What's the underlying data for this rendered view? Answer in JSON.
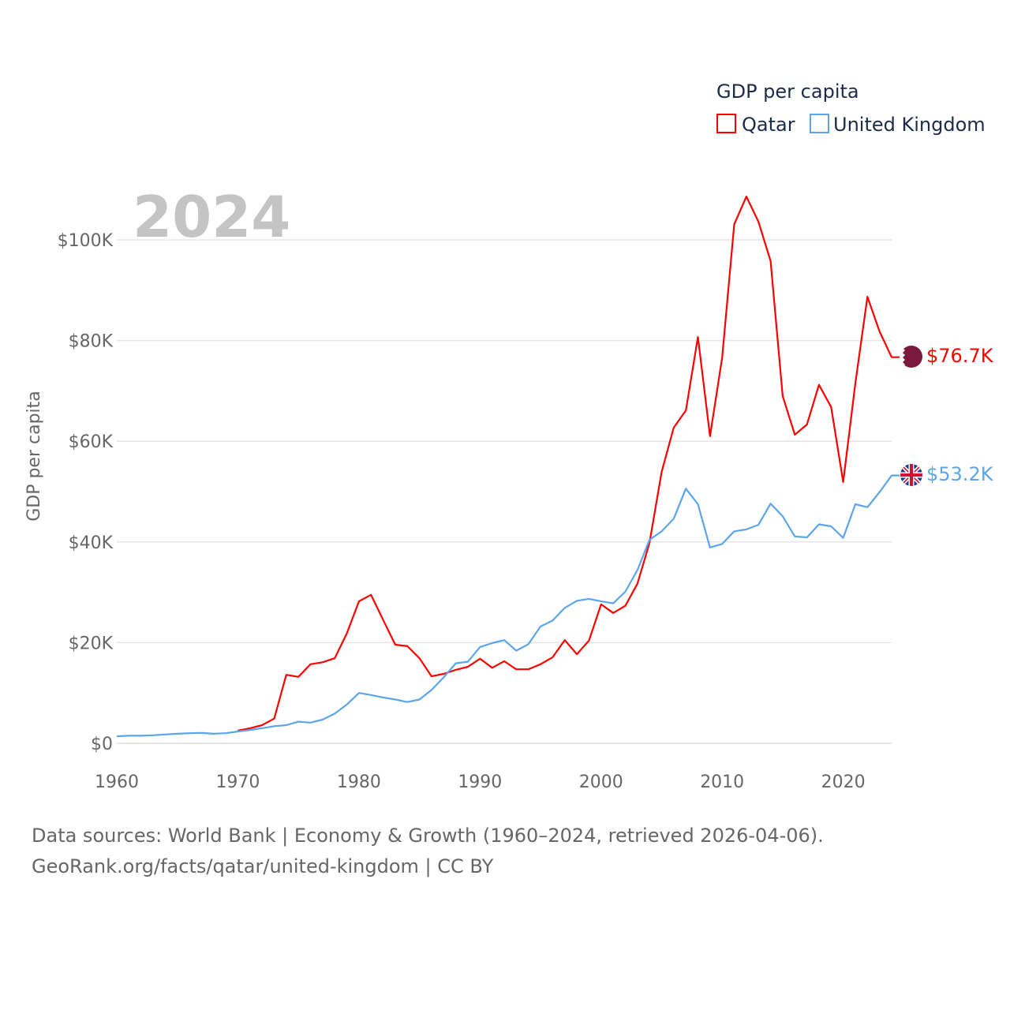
{
  "chart_data": {
    "type": "line",
    "title": "GDP per capita",
    "ylabel": "GDP per capita",
    "xlabel": "",
    "year_label": "2024",
    "xlim": [
      1960,
      2024
    ],
    "ylim": [
      0,
      110000
    ],
    "x_ticks": [
      1960,
      1970,
      1980,
      1990,
      2000,
      2010,
      2020
    ],
    "y_ticks": [
      0,
      20000,
      40000,
      60000,
      80000,
      100000
    ],
    "y_tick_labels": [
      "$0",
      "$20K",
      "$40K",
      "$60K",
      "$80K",
      "$100K"
    ],
    "grid": true,
    "legend_position": "top-right",
    "series": [
      {
        "name": "Qatar",
        "color": "#ff0000",
        "end_label": "$76.7K",
        "start_year": 1970,
        "values": [
          2.5,
          3.0,
          3.6,
          4.9,
          13.6,
          13.2,
          15.7,
          16.1,
          16.9,
          21.8,
          28.2,
          29.5,
          24.5,
          19.6,
          19.3,
          16.9,
          13.3,
          13.8,
          14.6,
          15.2,
          16.8,
          15.0,
          16.3,
          14.7,
          14.7,
          15.7,
          17.1,
          20.5,
          17.7,
          20.4,
          27.6,
          25.9,
          27.3,
          31.7,
          39.8,
          53.9,
          62.7,
          66.1,
          80.7,
          61.0,
          76.6,
          103.1,
          108.6,
          103.6,
          95.8,
          69.0,
          61.3,
          63.3,
          71.2,
          66.8,
          51.9,
          71.5,
          88.7,
          81.8,
          76.7
        ]
      },
      {
        "name": "United Kingdom",
        "color": "#5aa5ec",
        "end_label": "$53.2K",
        "start_year": 1960,
        "values": [
          1.4,
          1.5,
          1.5,
          1.6,
          1.75,
          1.9,
          2.0,
          2.05,
          1.9,
          2.0,
          2.35,
          2.65,
          3.0,
          3.4,
          3.6,
          4.3,
          4.1,
          4.7,
          5.9,
          7.7,
          10.0,
          9.6,
          9.1,
          8.7,
          8.2,
          8.7,
          10.6,
          13.1,
          15.9,
          16.2,
          19.1,
          19.9,
          20.5,
          18.4,
          19.7,
          23.2,
          24.4,
          26.9,
          28.3,
          28.7,
          28.2,
          27.8,
          30.1,
          34.4,
          40.4,
          42.1,
          44.6,
          50.6,
          47.5,
          38.9,
          39.6,
          42.1,
          42.5,
          43.4,
          47.6,
          45.1,
          41.1,
          40.9,
          43.5,
          43.1,
          40.8,
          47.5,
          46.9,
          49.9,
          53.2
        ]
      }
    ],
    "value_unit": "thousand USD"
  },
  "footer": {
    "line1": "Data sources: World Bank | Economy & Growth (1960–2024, retrieved 2026-04-06).",
    "line2": "GeoRank.org/facts/qatar/united-kingdom | CC BY"
  }
}
